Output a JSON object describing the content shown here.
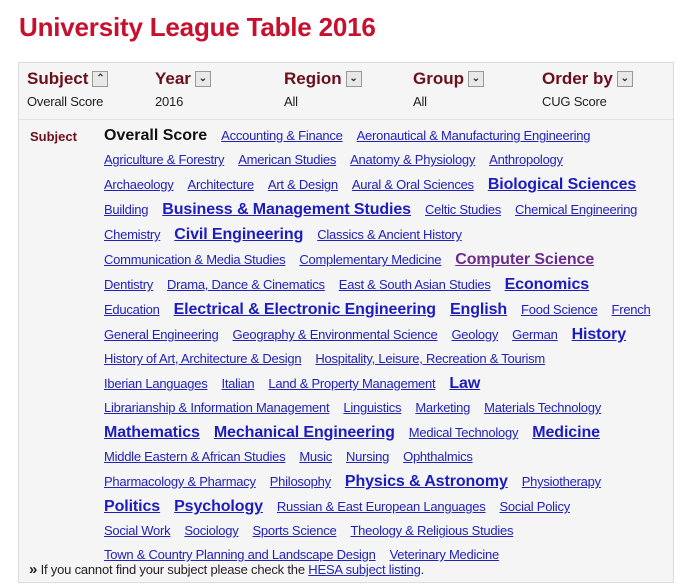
{
  "title": "University League Table 2016",
  "filters": [
    {
      "label": "Subject",
      "value": "Overall Score",
      "icon": "chevron-up-icon",
      "glyph": "⌃"
    },
    {
      "label": "Year",
      "value": "2016",
      "icon": "chevron-down-icon",
      "glyph": "⌄"
    },
    {
      "label": "Region",
      "value": "All",
      "icon": "chevron-down-icon",
      "glyph": "⌄"
    },
    {
      "label": "Group",
      "value": "All",
      "icon": "chevron-down-icon",
      "glyph": "⌄"
    },
    {
      "label": "Order by",
      "value": "CUG Score",
      "icon": "chevron-down-icon",
      "glyph": "⌄"
    }
  ],
  "subject_label": "Subject",
  "subject_rows": [
    [
      {
        "t": "Overall Score",
        "current": true
      },
      {
        "t": "Accounting & Finance"
      },
      {
        "t": "Aeronautical & Manufacturing Engineering"
      }
    ],
    [
      {
        "t": "Agriculture & Forestry"
      },
      {
        "t": "American Studies"
      },
      {
        "t": "Anatomy & Physiology"
      },
      {
        "t": "Anthropology"
      }
    ],
    [
      {
        "t": "Archaeology"
      },
      {
        "t": "Architecture"
      },
      {
        "t": "Art & Design"
      },
      {
        "t": "Aural & Oral Sciences"
      },
      {
        "t": "Biological Sciences",
        "big": true
      }
    ],
    [
      {
        "t": "Building"
      },
      {
        "t": "Business & Management Studies",
        "big": true
      },
      {
        "t": "Celtic Studies"
      },
      {
        "t": "Chemical Engineering"
      }
    ],
    [
      {
        "t": "Chemistry"
      },
      {
        "t": "Civil Engineering",
        "big": true
      },
      {
        "t": "Classics & Ancient History"
      }
    ],
    [
      {
        "t": "Communication & Media Studies"
      },
      {
        "t": "Complementary Medicine"
      },
      {
        "t": "Computer Science",
        "big": true,
        "visited": true
      }
    ],
    [
      {
        "t": "Dentistry"
      },
      {
        "t": "Drama, Dance & Cinematics"
      },
      {
        "t": "East & South Asian Studies"
      },
      {
        "t": "Economics",
        "big": true
      }
    ],
    [
      {
        "t": "Education"
      },
      {
        "t": "Electrical & Electronic Engineering",
        "big": true
      },
      {
        "t": "English",
        "big": true
      },
      {
        "t": "Food Science"
      },
      {
        "t": "French"
      }
    ],
    [
      {
        "t": "General Engineering"
      },
      {
        "t": "Geography & Environmental Science"
      },
      {
        "t": "Geology"
      },
      {
        "t": "German"
      },
      {
        "t": "History",
        "big": true
      }
    ],
    [
      {
        "t": "History of Art, Architecture & Design"
      },
      {
        "t": "Hospitality, Leisure, Recreation & Tourism"
      }
    ],
    [
      {
        "t": "Iberian Languages"
      },
      {
        "t": "Italian"
      },
      {
        "t": "Land & Property Management"
      },
      {
        "t": "Law",
        "big": true
      }
    ],
    [
      {
        "t": "Librarianship & Information Management"
      },
      {
        "t": "Linguistics"
      },
      {
        "t": "Marketing"
      },
      {
        "t": "Materials Technology"
      }
    ],
    [
      {
        "t": "Mathematics",
        "big": true
      },
      {
        "t": "Mechanical Engineering",
        "big": true
      },
      {
        "t": "Medical Technology"
      },
      {
        "t": "Medicine",
        "big": true
      }
    ],
    [
      {
        "t": "Middle Eastern & African Studies"
      },
      {
        "t": "Music"
      },
      {
        "t": "Nursing"
      },
      {
        "t": "Ophthalmics"
      }
    ],
    [
      {
        "t": "Pharmacology & Pharmacy"
      },
      {
        "t": "Philosophy"
      },
      {
        "t": "Physics & Astronomy",
        "big": true
      },
      {
        "t": "Physiotherapy"
      }
    ],
    [
      {
        "t": "Politics",
        "big": true
      },
      {
        "t": "Psychology",
        "big": true
      },
      {
        "t": "Russian & East European Languages"
      },
      {
        "t": "Social Policy"
      }
    ],
    [
      {
        "t": "Social Work"
      },
      {
        "t": "Sociology"
      },
      {
        "t": "Sports Science"
      },
      {
        "t": "Theology & Religious Studies"
      }
    ],
    [
      {
        "t": "Town & Country Planning and Landscape Design"
      },
      {
        "t": "Veterinary Medicine"
      }
    ]
  ],
  "note": {
    "prefix": "»",
    "text": " If you cannot find your subject please check the ",
    "link": "HESA subject listing",
    "suffix": "."
  },
  "colors": {
    "title": "#c8102e",
    "label": "#6b0f1a",
    "link": "#2222bb",
    "visited": "#6b2c8b"
  }
}
